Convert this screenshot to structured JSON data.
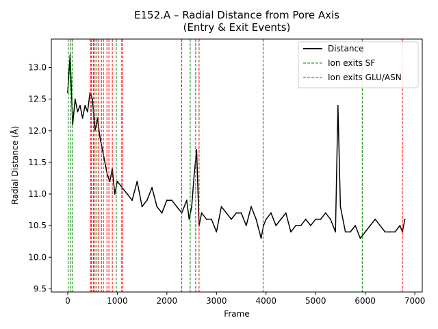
{
  "chart_data": {
    "type": "line",
    "title": "E152.A – Radial Distance from Pore Axis",
    "subtitle": "(Entry & Exit Events)",
    "xlabel": "Frame",
    "ylabel": "Radial Distance (Å)",
    "xlim": [
      -330,
      7150
    ],
    "ylim": [
      9.45,
      13.45
    ],
    "xticks": [
      0,
      1000,
      2000,
      3000,
      4000,
      5000,
      6000,
      7000
    ],
    "yticks": [
      9.5,
      10.0,
      10.5,
      11.0,
      11.5,
      12.0,
      12.5,
      13.0
    ],
    "xtick_labels": [
      "0",
      "1000",
      "2000",
      "3000",
      "4000",
      "5000",
      "6000",
      "7000"
    ],
    "ytick_labels": [
      "9.5",
      "10.0",
      "10.5",
      "11.0",
      "11.5",
      "12.0",
      "12.5",
      "13.0"
    ],
    "grid": false,
    "legend_position": "top-right",
    "series": [
      {
        "name": "Distance",
        "color": "#000000",
        "style": "solid",
        "x": [
          0,
          50,
          100,
          150,
          200,
          250,
          300,
          350,
          400,
          450,
          500,
          550,
          600,
          650,
          700,
          750,
          800,
          850,
          900,
          950,
          1000,
          1100,
          1200,
          1300,
          1400,
          1500,
          1600,
          1700,
          1800,
          1900,
          2000,
          2100,
          2200,
          2300,
          2400,
          2450,
          2500,
          2550,
          2600,
          2650,
          2700,
          2800,
          2900,
          3000,
          3100,
          3200,
          3300,
          3400,
          3500,
          3600,
          3700,
          3800,
          3900,
          3950,
          4000,
          4100,
          4200,
          4300,
          4400,
          4500,
          4600,
          4700,
          4800,
          4900,
          5000,
          5100,
          5200,
          5300,
          5400,
          5450,
          5500,
          5600,
          5700,
          5800,
          5900,
          6000,
          6100,
          6200,
          6300,
          6400,
          6500,
          6600,
          6700,
          6750,
          6800
        ],
        "values": [
          12.6,
          13.2,
          12.1,
          12.5,
          12.3,
          12.4,
          12.2,
          12.4,
          12.3,
          12.6,
          12.5,
          12.0,
          12.2,
          11.9,
          11.7,
          11.5,
          11.3,
          11.2,
          11.4,
          11.0,
          11.2,
          11.1,
          11.0,
          10.9,
          11.2,
          10.8,
          10.9,
          11.1,
          10.8,
          10.7,
          10.9,
          10.9,
          10.8,
          10.7,
          10.9,
          10.6,
          10.8,
          11.3,
          11.7,
          10.5,
          10.7,
          10.6,
          10.6,
          10.4,
          10.8,
          10.7,
          10.6,
          10.7,
          10.7,
          10.5,
          10.8,
          10.6,
          10.3,
          10.5,
          10.6,
          10.7,
          10.5,
          10.6,
          10.7,
          10.4,
          10.5,
          10.5,
          10.6,
          10.5,
          10.6,
          10.6,
          10.7,
          10.6,
          10.4,
          12.4,
          10.8,
          10.4,
          10.4,
          10.5,
          10.3,
          10.4,
          10.5,
          10.6,
          10.5,
          10.4,
          10.4,
          10.4,
          10.5,
          10.4,
          10.6
        ]
      },
      {
        "name": "Ion exits SF",
        "color": "#008000",
        "style": "dashed",
        "vlines": [
          10,
          50,
          90,
          480,
          590,
          980,
          1090,
          2470,
          2580,
          3940,
          5940
        ]
      },
      {
        "name": "Ion exits GLU/ASN",
        "color": "#ff0000",
        "style": "dashed",
        "vlines": [
          460,
          520,
          550,
          620,
          680,
          720,
          790,
          830,
          900,
          1100,
          2300,
          2650,
          6750
        ]
      }
    ]
  }
}
